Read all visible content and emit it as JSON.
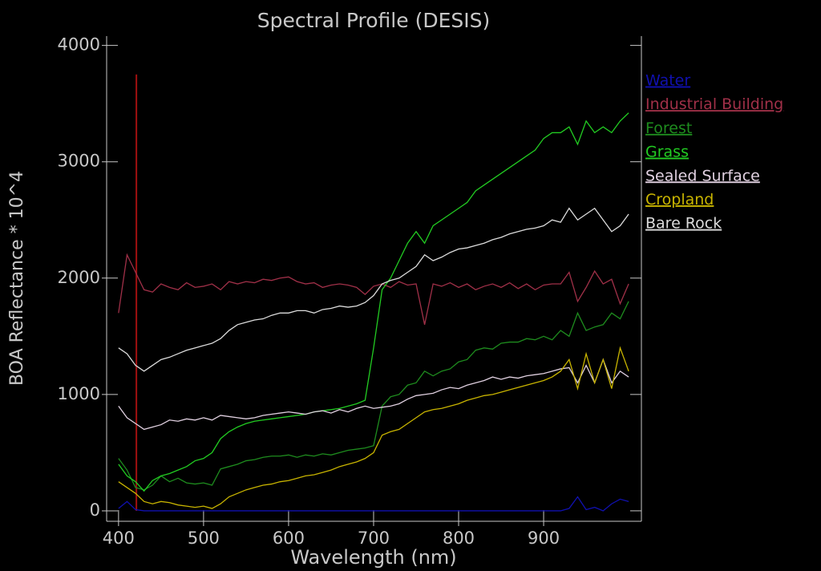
{
  "chart_data": {
    "type": "line",
    "title": "Spectral Profile (DESIS)",
    "xlabel": "Wavelength (nm)",
    "ylabel": "BOA Reflectance * 10^4",
    "xlim": [
      386,
      1015
    ],
    "ylim": [
      -90,
      4080
    ],
    "xticks": [
      400,
      500,
      600,
      700,
      800,
      900
    ],
    "yticks": [
      0,
      1000,
      2000,
      3000,
      4000
    ],
    "x": [
      400,
      410,
      420,
      430,
      440,
      450,
      460,
      470,
      480,
      490,
      500,
      510,
      520,
      530,
      540,
      550,
      560,
      570,
      580,
      590,
      600,
      610,
      620,
      630,
      640,
      650,
      660,
      670,
      680,
      690,
      700,
      710,
      720,
      730,
      740,
      750,
      760,
      770,
      780,
      790,
      800,
      810,
      820,
      830,
      840,
      850,
      860,
      870,
      880,
      890,
      900,
      910,
      920,
      930,
      940,
      950,
      960,
      970,
      980,
      990,
      1000
    ],
    "vline": {
      "x": 421,
      "y": [
        0,
        3750
      ],
      "color": "#a01010"
    },
    "series": [
      {
        "name": "Water",
        "color": "#1010b0",
        "values": [
          20,
          80,
          10,
          0,
          0,
          0,
          0,
          0,
          0,
          0,
          0,
          0,
          0,
          0,
          0,
          0,
          0,
          0,
          0,
          0,
          0,
          0,
          0,
          0,
          0,
          0,
          0,
          0,
          0,
          0,
          0,
          0,
          0,
          0,
          0,
          0,
          0,
          0,
          0,
          0,
          0,
          0,
          0,
          0,
          0,
          0,
          0,
          0,
          0,
          0,
          0,
          0,
          0,
          20,
          120,
          10,
          30,
          0,
          60,
          100,
          80
        ]
      },
      {
        "name": "Industrial Building",
        "color": "#a03048",
        "values": [
          1700,
          2200,
          2050,
          1900,
          1880,
          1950,
          1920,
          1900,
          1960,
          1920,
          1930,
          1950,
          1900,
          1970,
          1950,
          1970,
          1960,
          1990,
          1980,
          2000,
          2010,
          1970,
          1950,
          1960,
          1920,
          1940,
          1950,
          1940,
          1920,
          1860,
          1930,
          1950,
          1920,
          1970,
          1940,
          1950,
          1600,
          1950,
          1930,
          1960,
          1920,
          1950,
          1900,
          1930,
          1950,
          1920,
          1960,
          1910,
          1950,
          1900,
          1940,
          1950,
          1950,
          2050,
          1800,
          1920,
          2060,
          1950,
          1990,
          1780,
          1950
        ]
      },
      {
        "name": "Forest",
        "color": "#1e8c1e",
        "values": [
          450,
          350,
          200,
          180,
          220,
          300,
          250,
          280,
          240,
          230,
          240,
          220,
          360,
          380,
          400,
          430,
          440,
          460,
          470,
          470,
          480,
          460,
          480,
          470,
          490,
          480,
          500,
          520,
          530,
          540,
          560,
          900,
          980,
          1000,
          1080,
          1100,
          1200,
          1160,
          1200,
          1220,
          1280,
          1300,
          1380,
          1400,
          1390,
          1440,
          1450,
          1450,
          1480,
          1470,
          1500,
          1470,
          1550,
          1500,
          1700,
          1550,
          1580,
          1600,
          1700,
          1650,
          1800
        ]
      },
      {
        "name": "Grass",
        "color": "#22cc22",
        "values": [
          400,
          300,
          250,
          170,
          260,
          300,
          320,
          350,
          380,
          430,
          450,
          500,
          620,
          680,
          720,
          750,
          770,
          780,
          790,
          800,
          810,
          820,
          830,
          850,
          860,
          870,
          880,
          900,
          920,
          950,
          1400,
          1900,
          2000,
          2150,
          2300,
          2400,
          2300,
          2450,
          2500,
          2550,
          2600,
          2650,
          2750,
          2800,
          2850,
          2900,
          2950,
          3000,
          3050,
          3100,
          3200,
          3250,
          3250,
          3300,
          3150,
          3350,
          3250,
          3300,
          3250,
          3350,
          3420
        ]
      },
      {
        "name": "Sealed Surface",
        "color": "#e0d0e0",
        "values": [
          900,
          800,
          750,
          700,
          720,
          740,
          780,
          770,
          790,
          780,
          800,
          780,
          820,
          810,
          800,
          790,
          800,
          820,
          830,
          840,
          850,
          840,
          830,
          850,
          860,
          840,
          870,
          850,
          880,
          900,
          880,
          890,
          900,
          920,
          960,
          990,
          1000,
          1010,
          1040,
          1060,
          1050,
          1080,
          1100,
          1120,
          1150,
          1130,
          1150,
          1140,
          1160,
          1170,
          1180,
          1200,
          1220,
          1230,
          1100,
          1250,
          1100,
          1300,
          1100,
          1200,
          1150
        ]
      },
      {
        "name": "Cropland",
        "color": "#c8b400",
        "values": [
          250,
          200,
          150,
          80,
          60,
          80,
          70,
          50,
          40,
          30,
          40,
          20,
          60,
          120,
          150,
          180,
          200,
          220,
          230,
          250,
          260,
          280,
          300,
          310,
          330,
          350,
          380,
          400,
          420,
          450,
          500,
          650,
          680,
          700,
          750,
          800,
          850,
          870,
          880,
          900,
          920,
          950,
          970,
          990,
          1000,
          1020,
          1040,
          1060,
          1080,
          1100,
          1120,
          1150,
          1200,
          1300,
          1050,
          1350,
          1100,
          1300,
          1050,
          1400,
          1200
        ]
      },
      {
        "name": "Bare Rock",
        "color": "#dcdcdc",
        "values": [
          1400,
          1350,
          1250,
          1200,
          1250,
          1300,
          1320,
          1350,
          1380,
          1400,
          1420,
          1440,
          1480,
          1550,
          1600,
          1620,
          1640,
          1650,
          1680,
          1700,
          1700,
          1720,
          1720,
          1700,
          1730,
          1740,
          1760,
          1750,
          1760,
          1790,
          1850,
          1950,
          1980,
          2000,
          2050,
          2100,
          2200,
          2150,
          2180,
          2220,
          2250,
          2260,
          2280,
          2300,
          2330,
          2350,
          2380,
          2400,
          2420,
          2430,
          2450,
          2500,
          2480,
          2600,
          2500,
          2550,
          2600,
          2500,
          2400,
          2450,
          2550
        ]
      }
    ]
  }
}
